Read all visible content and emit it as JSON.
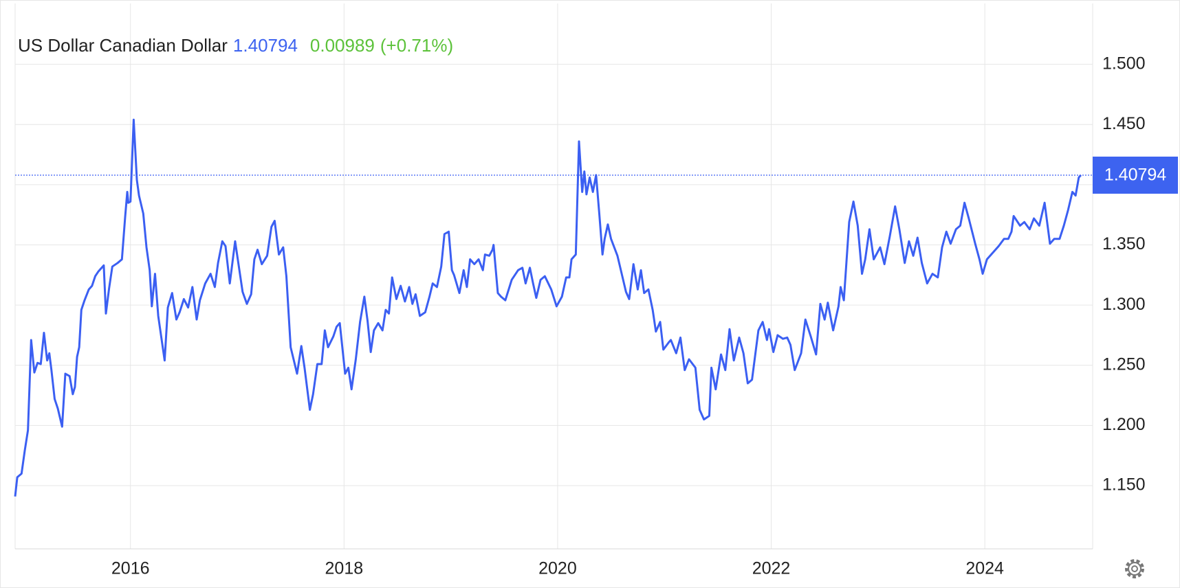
{
  "chart_data": {
    "type": "line",
    "title": "US Dollar Canadian Dollar",
    "last_value": 1.40794,
    "change": 0.00989,
    "change_percent_label": "(+0.71%)",
    "color": "#3b5ff2",
    "grid": true,
    "xlim": [
      2014.92,
      2025.01
    ],
    "xticks": [
      2016,
      2018,
      2020,
      2022,
      2024
    ],
    "ylim": [
      1.0975,
      1.5506
    ],
    "yticks": [
      {
        "value": 1.15,
        "label": "1.150"
      },
      {
        "value": 1.2,
        "label": "1.200"
      },
      {
        "value": 1.25,
        "label": "1.250"
      },
      {
        "value": 1.3,
        "label": "1.300"
      },
      {
        "value": 1.35,
        "label": "1.350"
      },
      {
        "value": 1.4,
        "label": "1.400"
      },
      {
        "value": 1.45,
        "label": "1.450"
      },
      {
        "value": 1.5,
        "label": "1.500"
      }
    ],
    "x": [
      2014.92,
      2014.94,
      2014.98,
      2015.01,
      2015.04,
      2015.07,
      2015.1,
      2015.13,
      2015.16,
      2015.19,
      2015.22,
      2015.24,
      2015.26,
      2015.29,
      2015.32,
      2015.36,
      2015.39,
      2015.43,
      2015.46,
      2015.48,
      2015.5,
      2015.52,
      2015.54,
      2015.57,
      2015.61,
      2015.64,
      2015.67,
      2015.7,
      2015.75,
      2015.77,
      2015.8,
      2015.83,
      2015.88,
      2015.92,
      2015.95,
      2015.97,
      2015.98,
      2016.0,
      2016.03,
      2016.06,
      2016.08,
      2016.12,
      2016.15,
      2016.18,
      2016.2,
      2016.23,
      2016.26,
      2016.32,
      2016.35,
      2016.39,
      2016.43,
      2016.46,
      2016.5,
      2016.54,
      2016.58,
      2016.62,
      2016.65,
      2016.7,
      2016.75,
      2016.79,
      2016.82,
      2016.86,
      2016.89,
      2016.93,
      2016.98,
      2017.02,
      2017.05,
      2017.09,
      2017.13,
      2017.16,
      2017.19,
      2017.23,
      2017.28,
      2017.32,
      2017.35,
      2017.39,
      2017.43,
      2017.46,
      2017.5,
      2017.53,
      2017.56,
      2017.6,
      2017.63,
      2017.68,
      2017.71,
      2017.75,
      2017.79,
      2017.82,
      2017.85,
      2017.9,
      2017.93,
      2017.96,
      2018.01,
      2018.04,
      2018.07,
      2018.11,
      2018.15,
      2018.19,
      2018.22,
      2018.25,
      2018.28,
      2018.32,
      2018.36,
      2018.39,
      2018.42,
      2018.45,
      2018.49,
      2018.53,
      2018.57,
      2018.61,
      2018.64,
      2018.67,
      2018.71,
      2018.76,
      2018.8,
      2018.83,
      2018.87,
      2018.91,
      2018.94,
      2018.98,
      2019.01,
      2019.03,
      2019.08,
      2019.12,
      2019.15,
      2019.18,
      2019.22,
      2019.26,
      2019.3,
      2019.32,
      2019.36,
      2019.39,
      2019.4,
      2019.44,
      2019.47,
      2019.51,
      2019.57,
      2019.63,
      2019.67,
      2019.7,
      2019.74,
      2019.77,
      2019.8,
      2019.84,
      2019.88,
      2019.94,
      2019.99,
      2020.04,
      2020.08,
      2020.11,
      2020.13,
      2020.17,
      2020.2,
      2020.23,
      2020.25,
      2020.27,
      2020.3,
      2020.33,
      2020.36,
      2020.39,
      2020.42,
      2020.44,
      2020.47,
      2020.5,
      2020.56,
      2020.6,
      2020.64,
      2020.67,
      2020.71,
      2020.75,
      2020.78,
      2020.81,
      2020.85,
      2020.89,
      2020.92,
      2020.96,
      2020.99,
      2021.04,
      2021.06,
      2021.11,
      2021.15,
      2021.19,
      2021.23,
      2021.29,
      2021.33,
      2021.37,
      2021.42,
      2021.44,
      2021.48,
      2021.53,
      2021.57,
      2021.61,
      2021.65,
      2021.7,
      2021.74,
      2021.78,
      2021.82,
      2021.88,
      2021.92,
      2021.96,
      2021.98,
      2022.02,
      2022.06,
      2022.11,
      2022.15,
      2022.18,
      2022.22,
      2022.28,
      2022.32,
      2022.37,
      2022.42,
      2022.46,
      2022.5,
      2022.53,
      2022.58,
      2022.63,
      2022.65,
      2022.68,
      2022.73,
      2022.77,
      2022.81,
      2022.85,
      2022.88,
      2022.92,
      2022.96,
      2023.02,
      2023.06,
      2023.11,
      2023.16,
      2023.2,
      2023.25,
      2023.29,
      2023.33,
      2023.37,
      2023.41,
      2023.46,
      2023.51,
      2023.56,
      2023.6,
      2023.64,
      2023.68,
      2023.73,
      2023.77,
      2023.81,
      2023.85,
      2023.91,
      2023.95,
      2023.98,
      2024.02,
      2024.08,
      2024.13,
      2024.18,
      2024.22,
      2024.25,
      2024.27,
      2024.33,
      2024.37,
      2024.42,
      2024.46,
      2024.51,
      2024.56,
      2024.61,
      2024.65,
      2024.7,
      2024.74,
      2024.78,
      2024.82,
      2024.85,
      2024.88,
      2024.9
    ],
    "values": [
      1.141,
      1.157,
      1.16,
      1.179,
      1.196,
      1.271,
      1.244,
      1.252,
      1.251,
      1.277,
      1.254,
      1.26,
      1.246,
      1.222,
      1.214,
      1.199,
      1.243,
      1.241,
      1.226,
      1.232,
      1.257,
      1.265,
      1.296,
      1.304,
      1.313,
      1.316,
      1.324,
      1.328,
      1.333,
      1.293,
      1.314,
      1.332,
      1.335,
      1.338,
      1.373,
      1.394,
      1.385,
      1.386,
      1.454,
      1.404,
      1.391,
      1.376,
      1.348,
      1.329,
      1.299,
      1.326,
      1.291,
      1.254,
      1.298,
      1.31,
      1.288,
      1.294,
      1.305,
      1.298,
      1.315,
      1.288,
      1.304,
      1.318,
      1.326,
      1.315,
      1.335,
      1.353,
      1.349,
      1.318,
      1.353,
      1.329,
      1.311,
      1.301,
      1.309,
      1.338,
      1.346,
      1.334,
      1.341,
      1.365,
      1.37,
      1.342,
      1.348,
      1.324,
      1.265,
      1.254,
      1.243,
      1.266,
      1.248,
      1.213,
      1.226,
      1.251,
      1.251,
      1.279,
      1.265,
      1.274,
      1.282,
      1.285,
      1.243,
      1.248,
      1.23,
      1.255,
      1.286,
      1.307,
      1.287,
      1.261,
      1.279,
      1.285,
      1.279,
      1.296,
      1.293,
      1.323,
      1.305,
      1.316,
      1.303,
      1.315,
      1.301,
      1.309,
      1.291,
      1.294,
      1.307,
      1.318,
      1.315,
      1.332,
      1.359,
      1.361,
      1.329,
      1.325,
      1.31,
      1.329,
      1.315,
      1.338,
      1.334,
      1.338,
      1.329,
      1.342,
      1.341,
      1.346,
      1.35,
      1.31,
      1.307,
      1.304,
      1.321,
      1.329,
      1.331,
      1.318,
      1.331,
      1.318,
      1.306,
      1.321,
      1.324,
      1.313,
      1.299,
      1.307,
      1.323,
      1.323,
      1.338,
      1.342,
      1.436,
      1.394,
      1.411,
      1.392,
      1.406,
      1.394,
      1.408,
      1.376,
      1.342,
      1.355,
      1.367,
      1.355,
      1.341,
      1.326,
      1.311,
      1.305,
      1.334,
      1.313,
      1.329,
      1.31,
      1.313,
      1.296,
      1.278,
      1.286,
      1.263,
      1.269,
      1.271,
      1.26,
      1.273,
      1.246,
      1.255,
      1.248,
      1.213,
      1.205,
      1.208,
      1.248,
      1.23,
      1.259,
      1.246,
      1.28,
      1.254,
      1.273,
      1.26,
      1.235,
      1.238,
      1.279,
      1.286,
      1.271,
      1.28,
      1.261,
      1.275,
      1.272,
      1.273,
      1.267,
      1.246,
      1.26,
      1.288,
      1.274,
      1.259,
      1.301,
      1.288,
      1.302,
      1.279,
      1.299,
      1.315,
      1.304,
      1.369,
      1.386,
      1.366,
      1.326,
      1.338,
      1.363,
      1.338,
      1.348,
      1.334,
      1.357,
      1.382,
      1.363,
      1.335,
      1.353,
      1.341,
      1.356,
      1.335,
      1.318,
      1.326,
      1.323,
      1.348,
      1.361,
      1.351,
      1.363,
      1.366,
      1.385,
      1.372,
      1.351,
      1.338,
      1.326,
      1.338,
      1.344,
      1.349,
      1.355,
      1.355,
      1.361,
      1.374,
      1.366,
      1.369,
      1.363,
      1.372,
      1.366,
      1.385,
      1.351,
      1.355,
      1.355,
      1.366,
      1.379,
      1.394,
      1.391,
      1.406,
      1.408
    ]
  }
}
